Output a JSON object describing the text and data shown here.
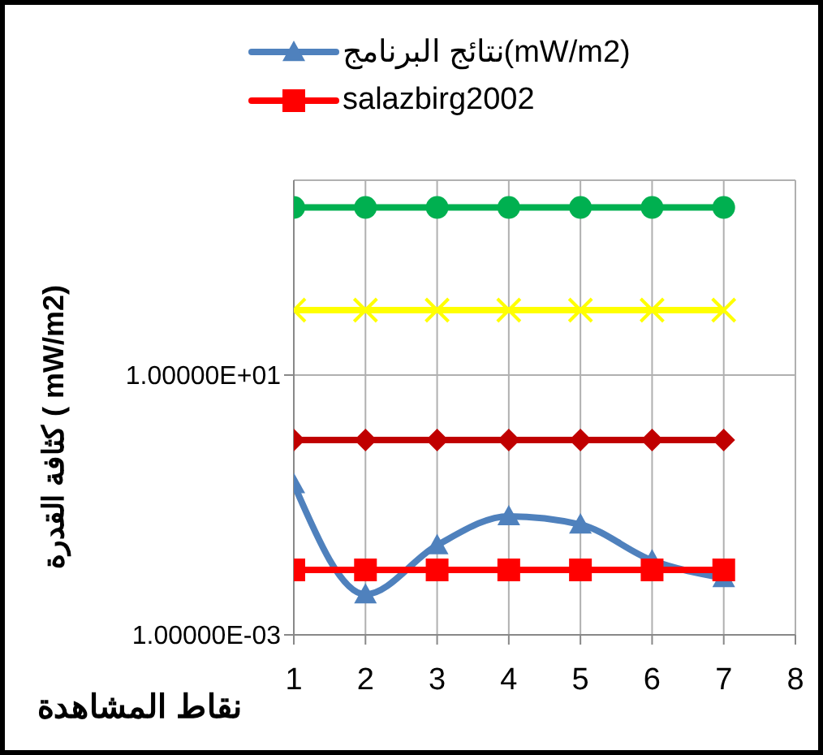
{
  "chart_data": {
    "type": "line",
    "xlabel": "نقاط المشاهدة",
    "ylabel": "كثافة القدرة ( mW/m2)",
    "x": [
      1,
      2,
      3,
      4,
      5,
      6,
      7
    ],
    "xlim": [
      1,
      8
    ],
    "xticks": [
      1,
      2,
      3,
      4,
      5,
      6,
      7,
      8
    ],
    "log": "y",
    "ylim": [
      0.001,
      10000
    ],
    "yticks": [
      {
        "value": 0.001,
        "label": "1.00000E-03"
      },
      {
        "value": 10,
        "label": "1.00000E+01"
      }
    ],
    "grid": true,
    "legend": "top",
    "line_style": "solid",
    "series": [
      {
        "name": "نتائج البرنامج(mW/m2)",
        "color": "#4f81bd",
        "marker": "triangle",
        "values": [
          0.21,
          0.0042,
          0.024,
          0.067,
          0.05,
          0.014,
          0.0075
        ]
      },
      {
        "name": "salazbirg2002",
        "color": "#ff0000",
        "marker": "square",
        "values": [
          0.01,
          0.01,
          0.01,
          0.01,
          0.01,
          0.01,
          0.01
        ]
      },
      {
        "color": "#00b050",
        "marker": "circle",
        "values": [
          3800,
          3800,
          3800,
          3800,
          3800,
          3800,
          3800
        ]
      },
      {
        "color": "#ffff00",
        "marker": "cross",
        "values": [
          100,
          100,
          100,
          100,
          100,
          100,
          100
        ]
      },
      {
        "color": "#c00000",
        "marker": "diamond",
        "values": [
          1,
          1,
          1,
          1,
          1,
          1,
          1
        ]
      }
    ]
  }
}
